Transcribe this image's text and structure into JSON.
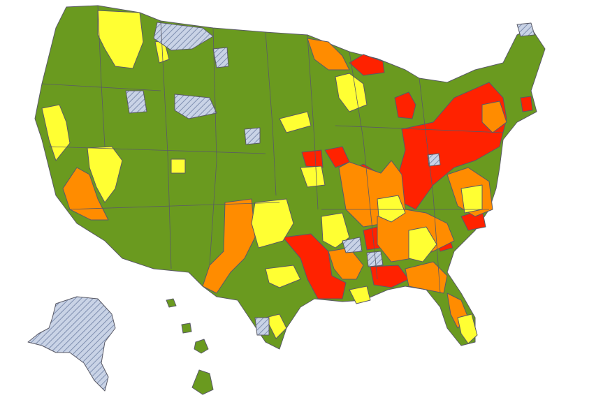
{
  "map": {
    "colors": {
      "green": "#6a9a1f",
      "yellow": "#ffff33",
      "orange": "#ff8c00",
      "red": "#ff2200",
      "no_data": "#c9d3e6",
      "hatch": "#7f8fb0",
      "border": "#5a5a66",
      "background": "#ffffff"
    },
    "categories": [
      "green",
      "yellow",
      "orange",
      "red",
      "no-data-hatched"
    ],
    "regions": [
      "contiguous-us",
      "alaska",
      "hawaii"
    ]
  }
}
